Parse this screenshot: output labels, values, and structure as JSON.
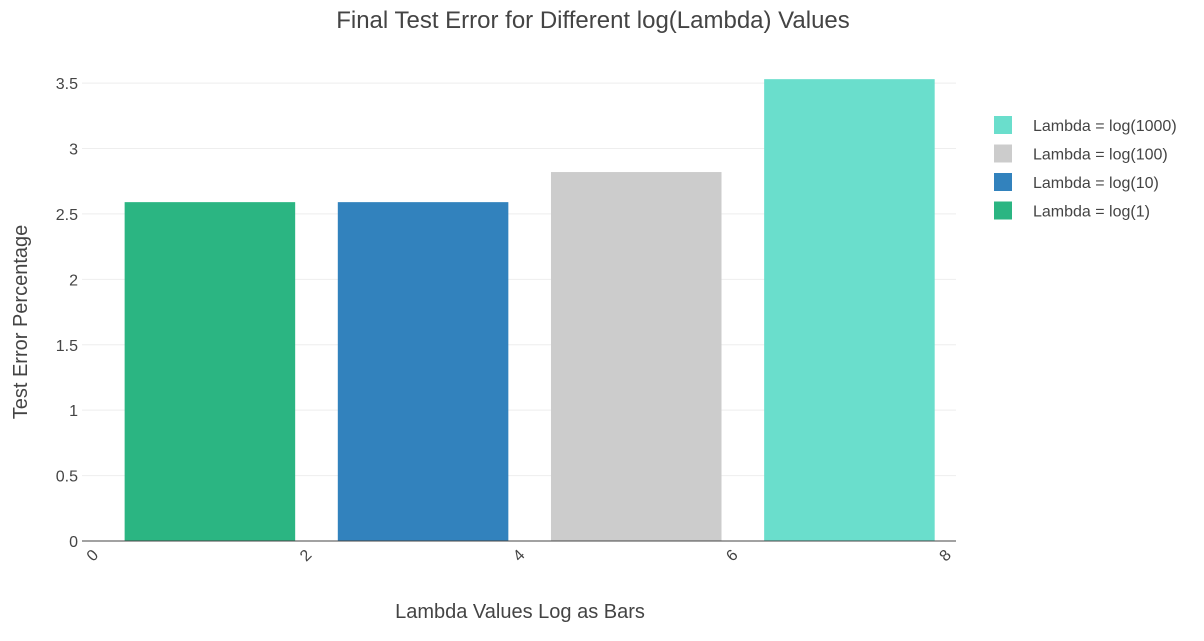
{
  "chart_data": {
    "type": "bar",
    "title": "Final Test Error for Different log(Lambda) Values",
    "xlabel": "Lambda Values Log as Bars",
    "ylabel": "Test Error Percentage",
    "xlim": [
      -0.2,
      8
    ],
    "ylim": [
      0,
      3.6
    ],
    "x_ticks": [
      "0",
      "2",
      "4",
      "6",
      "8"
    ],
    "y_ticks": [
      "0",
      "0.5",
      "1",
      "1.5",
      "2",
      "2.5",
      "3",
      "3.5"
    ],
    "grid": true,
    "legend_position": "top-right",
    "series": [
      {
        "name": "Lambda = log(1)",
        "x": 1,
        "value": 2.59,
        "color": "#2bb582"
      },
      {
        "name": "Lambda = log(10)",
        "x": 3,
        "value": 2.59,
        "color": "#3282bd"
      },
      {
        "name": "Lambda = log(100)",
        "x": 5,
        "value": 2.82,
        "color": "#cccccc"
      },
      {
        "name": "Lambda = log(1000)",
        "x": 7,
        "value": 3.53,
        "color": "#6adecc"
      }
    ],
    "legend_order": [
      3,
      2,
      1,
      0
    ]
  }
}
